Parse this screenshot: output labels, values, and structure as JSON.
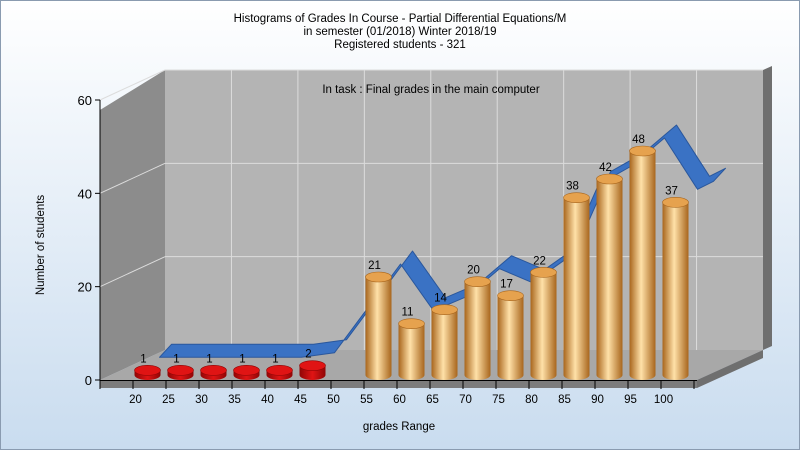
{
  "title_lines": [
    "Histograms of Grades  In Course - Partial Differential Equations/M",
    "in semester  (01/2018) Winter 2018/19",
    "Registered students - 321"
  ],
  "colors": {
    "bg_top": "#ffffff",
    "bg_bottom": "#c9dcef",
    "wall": "#8c8c8c",
    "wall_dark": "#6f6f6f",
    "back_plane": "#b4b4b4",
    "floor": "#a8a8a8",
    "floor_front": "#7c7c7c",
    "grid": "#dcdcdc",
    "ribbon": "#3a72c4",
    "ribbon_edge": "#2a579c",
    "bar_orange": "#e6a24e",
    "bar_orange_light": "#ffe1a8",
    "bar_orange_dark": "#a8651c",
    "bar_red": "#e01414",
    "bar_red_dark": "#8f0606",
    "text": "#000000"
  },
  "chart_data": {
    "type": "bar",
    "title": "Histograms of Grades  In Course - Partial Differential Equations/M",
    "subtitle": "in semester  (01/2018) Winter 2018/19",
    "subtitle2": "Registered students - 321",
    "annotation": "In task : Final grades in the main computer",
    "xlabel": "grades Range",
    "ylabel": "Number of students",
    "x_ticks": [
      "20",
      "25",
      "30",
      "35",
      "40",
      "45",
      "50",
      "55",
      "60",
      "65",
      "70",
      "75",
      "80",
      "85",
      "90",
      "95",
      "100"
    ],
    "y_ticks": [
      0,
      20,
      40,
      60
    ],
    "ylim": [
      0,
      60
    ],
    "grid": true,
    "categories": [
      "20",
      "25",
      "30",
      "35",
      "40",
      "45",
      "55",
      "60",
      "65",
      "70",
      "75",
      "80",
      "85",
      "90",
      "95",
      "100"
    ],
    "values": [
      1,
      1,
      1,
      1,
      1,
      2,
      21,
      11,
      14,
      20,
      17,
      22,
      38,
      42,
      48,
      37
    ],
    "bar_colors": [
      "red",
      "red",
      "red",
      "red",
      "red",
      "red",
      "orange",
      "orange",
      "orange",
      "orange",
      "orange",
      "orange",
      "orange",
      "orange",
      "orange",
      "orange"
    ],
    "trend_values": [
      1,
      1,
      1,
      1,
      1,
      2,
      21,
      11,
      14,
      20,
      17,
      22,
      38,
      42,
      48,
      37
    ]
  }
}
